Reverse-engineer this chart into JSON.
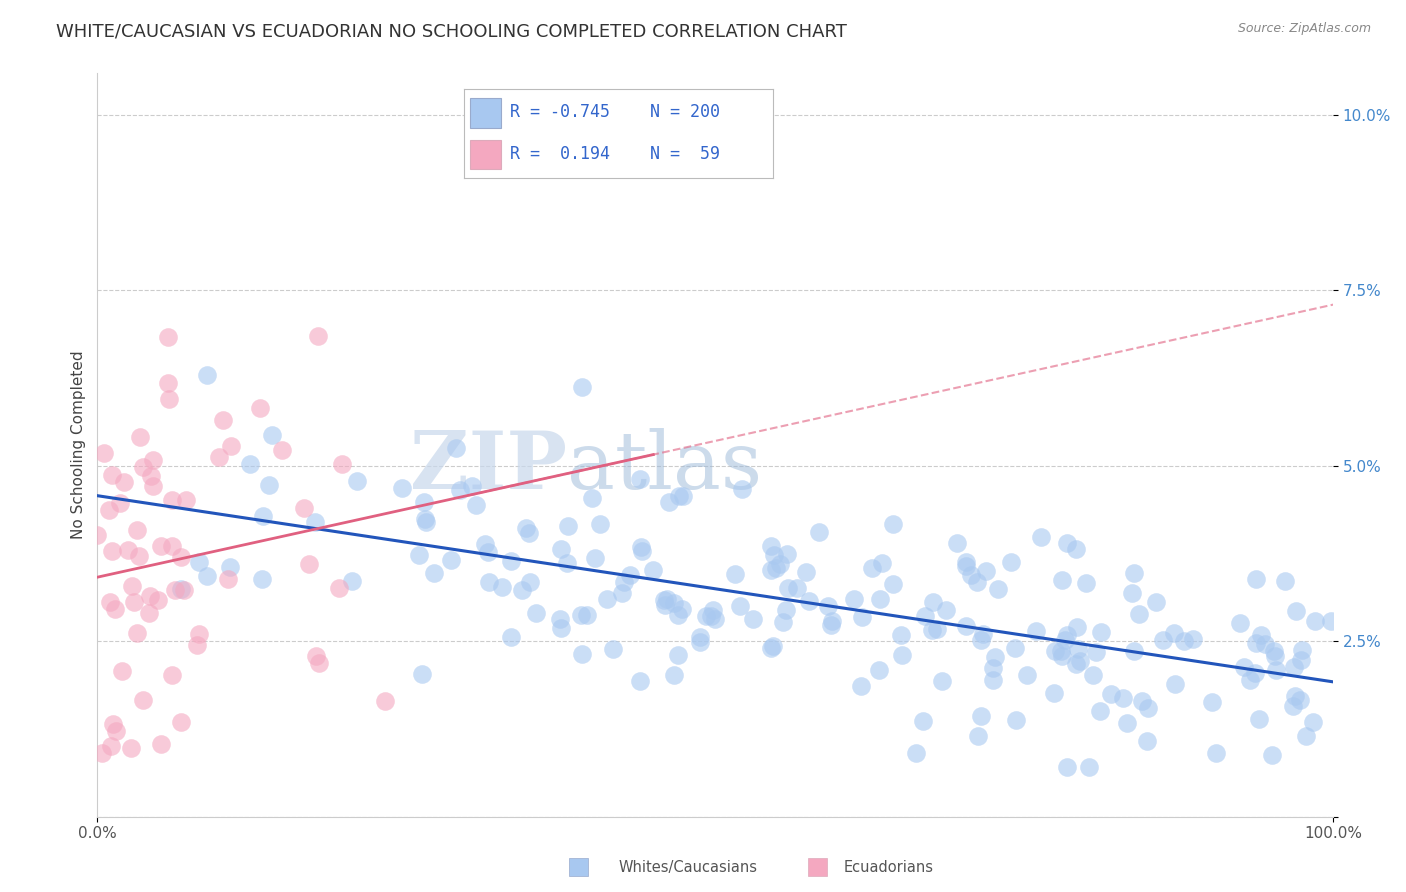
{
  "title": "WHITE/CAUCASIAN VS ECUADORIAN NO SCHOOLING COMPLETED CORRELATION CHART",
  "source": "Source: ZipAtlas.com",
  "ylabel": "No Schooling Completed",
  "xlim": [
    0,
    1.0
  ],
  "ylim": [
    0,
    0.106
  ],
  "blue_color": "#A8C8F0",
  "pink_color": "#F4A8C0",
  "blue_line_color": "#2255BB",
  "pink_line_color": "#E06080",
  "blue_R": -0.745,
  "blue_N": 200,
  "pink_R": 0.194,
  "pink_N": 59,
  "watermark_zip": "ZIP",
  "watermark_atlas": "atlas",
  "background_color": "#ffffff",
  "grid_color": "#cccccc",
  "title_fontsize": 13,
  "axis_label_fontsize": 11,
  "tick_fontsize": 11,
  "tick_color": "#4488CC",
  "legend_fontsize": 12,
  "legend_color": "#3366CC"
}
